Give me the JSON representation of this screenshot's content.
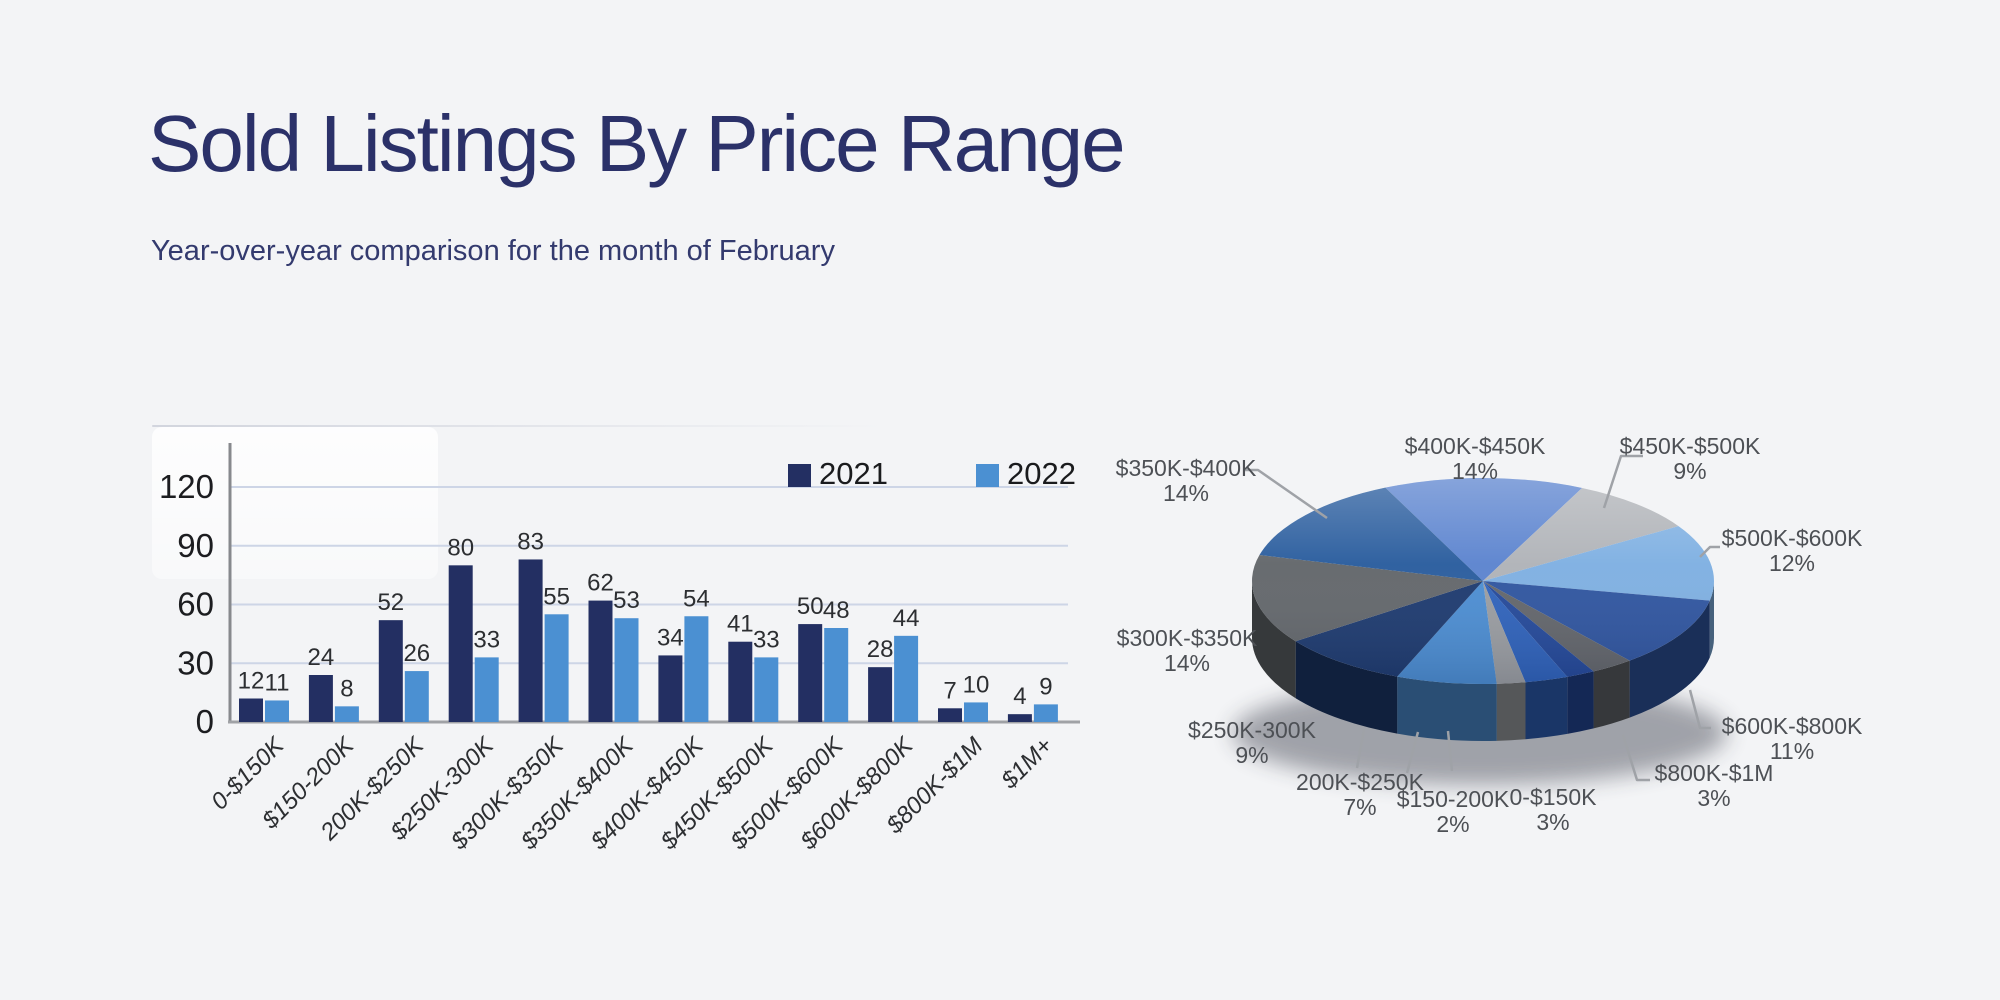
{
  "palette": {
    "background": "#f3f4f6",
    "title_color": "#2b3169",
    "subtitle_color": "#333a6e",
    "chart_text_color": "#2c2e31",
    "axis_tick_color": "#1c1d20",
    "pie_label_color": "#4d5055",
    "leader_line_color": "#9fa2a7",
    "series_2021_color": "#232f62",
    "series_2022_color": "#4b90d2"
  },
  "header": {
    "title": "Sold Listings By Price Range",
    "subtitle": "Year-over-year comparison for the month of February"
  },
  "chart_data": [
    {
      "type": "bar",
      "name": "sold-listings-grouped-bar-chart",
      "categories": [
        "0-$150K",
        "$150-200K",
        "200K-$250K",
        "$250K-300K",
        "$300K-$350K",
        "$350K-$400K",
        "$400K-$450K",
        "$450K-$500K",
        "$500K-$600K",
        "$600K-$800K",
        "$800K-$1M",
        "$1M+"
      ],
      "series": [
        {
          "name": "2021",
          "color": "#232f62",
          "values": [
            12,
            24,
            52,
            80,
            83,
            62,
            34,
            41,
            50,
            28,
            7,
            4
          ]
        },
        {
          "name": "2022",
          "color": "#4b90d2",
          "values": [
            11,
            8,
            26,
            33,
            55,
            53,
            54,
            33,
            48,
            44,
            10,
            9
          ]
        }
      ],
      "yticks": [
        0,
        30,
        60,
        90,
        120
      ],
      "ylim": [
        0,
        133
      ],
      "grid": true,
      "bar_value_labels": true,
      "legend_position": "top-right",
      "legend": [
        "2021",
        "2022"
      ]
    },
    {
      "type": "pie",
      "name": "price-range-share-pie-chart",
      "style": "3d",
      "slices": [
        {
          "label": "0-$150K",
          "pct_label": "3%",
          "value": 3,
          "color": "#2f63bc"
        },
        {
          "label": "$150-200K",
          "pct_label": "2%",
          "value": 2,
          "color": "#9b9ea2"
        },
        {
          "label": "200K-$250K",
          "pct_label": "7%",
          "value": 7,
          "color": "#4c8ed3"
        },
        {
          "label": "$250K-300K",
          "pct_label": "9%",
          "value": 9,
          "color": "#1d3a6f"
        },
        {
          "label": "$300K-$350K",
          "pct_label": "14%",
          "value": 14,
          "color": "#63676b"
        },
        {
          "label": "$350K-$400K",
          "pct_label": "14%",
          "value": 14,
          "color": "#2a5d9e"
        },
        {
          "label": "$400K-$450K",
          "pct_label": "14%",
          "value": 14,
          "color": "#5c84cf"
        },
        {
          "label": "$450K-$500K",
          "pct_label": "9%",
          "value": 9,
          "color": "#b0b3b8"
        },
        {
          "label": "$500K-$600K",
          "pct_label": "12%",
          "value": 12,
          "color": "#7fb0e2"
        },
        {
          "label": "$600K-$800K",
          "pct_label": "11%",
          "value": 11,
          "color": "#2f55a0"
        },
        {
          "label": "$800K-$1M",
          "pct_label": "3%",
          "value": 3,
          "color": "#63666b"
        },
        {
          "label": "",
          "pct_label": "",
          "value": 2,
          "color": "#24499a",
          "unlabeled": true
        }
      ]
    }
  ]
}
